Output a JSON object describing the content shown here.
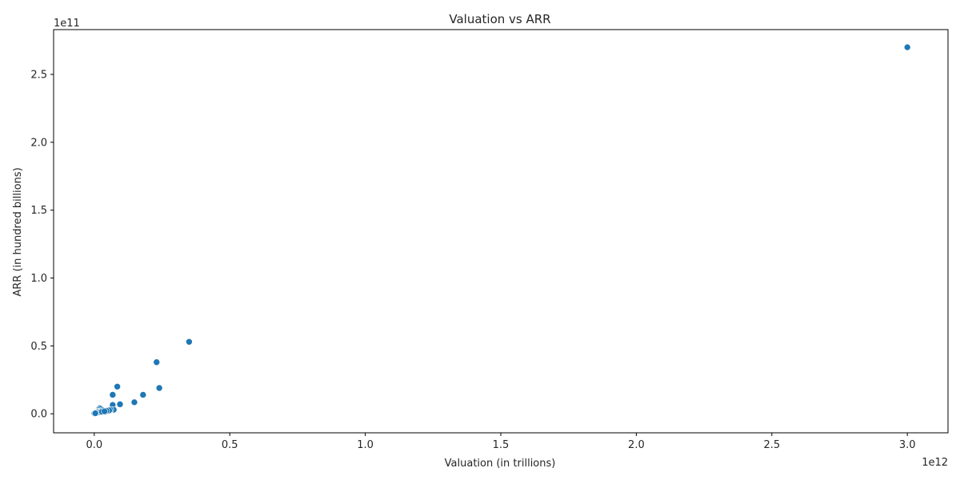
{
  "chart_data": {
    "type": "scatter",
    "title": "Valuation vs ARR",
    "xlabel": "Valuation (in trillions)",
    "ylabel": "ARR (in hundred billions)",
    "x_offset_label": "1e12",
    "y_offset_label": "1e11",
    "xlim": [
      -0.15,
      3.15
    ],
    "ylim": [
      -0.14,
      2.83
    ],
    "x_ticks": [
      0.0,
      0.5,
      1.0,
      1.5,
      2.0,
      2.5,
      3.0
    ],
    "x_tick_labels": [
      "0.0",
      "0.5",
      "1.0",
      "1.5",
      "2.0",
      "2.5",
      "3.0"
    ],
    "y_ticks": [
      0.0,
      0.5,
      1.0,
      1.5,
      2.0,
      2.5
    ],
    "y_tick_labels": [
      "0.0",
      "0.5",
      "1.0",
      "1.5",
      "2.0",
      "2.5"
    ],
    "grid": false,
    "legend": "none",
    "point_color": "#1f77b4",
    "series": [
      {
        "x": [
          3.0,
          0.35,
          0.23,
          0.24,
          0.085,
          0.18,
          0.068,
          0.095,
          0.148,
          0.068,
          0.072,
          0.035,
          0.042,
          0.025,
          0.02,
          0.015,
          0.012,
          0.01,
          0.008,
          0.005,
          0.003,
          0.002,
          0.001,
          0.03,
          0.05,
          0.06,
          0.055,
          0.045,
          0.022,
          0.018,
          0.014,
          0.006,
          0.004,
          0.028,
          0.038
        ],
        "y": [
          2.7,
          0.53,
          0.38,
          0.19,
          0.2,
          0.14,
          0.14,
          0.07,
          0.085,
          0.065,
          0.03,
          0.02,
          0.015,
          0.035,
          0.04,
          0.03,
          0.02,
          0.015,
          0.01,
          0.008,
          0.005,
          0.004,
          0.003,
          0.025,
          0.02,
          0.03,
          0.025,
          0.022,
          0.018,
          0.012,
          0.01,
          0.006,
          0.004,
          0.015,
          0.018
        ]
      }
    ]
  }
}
